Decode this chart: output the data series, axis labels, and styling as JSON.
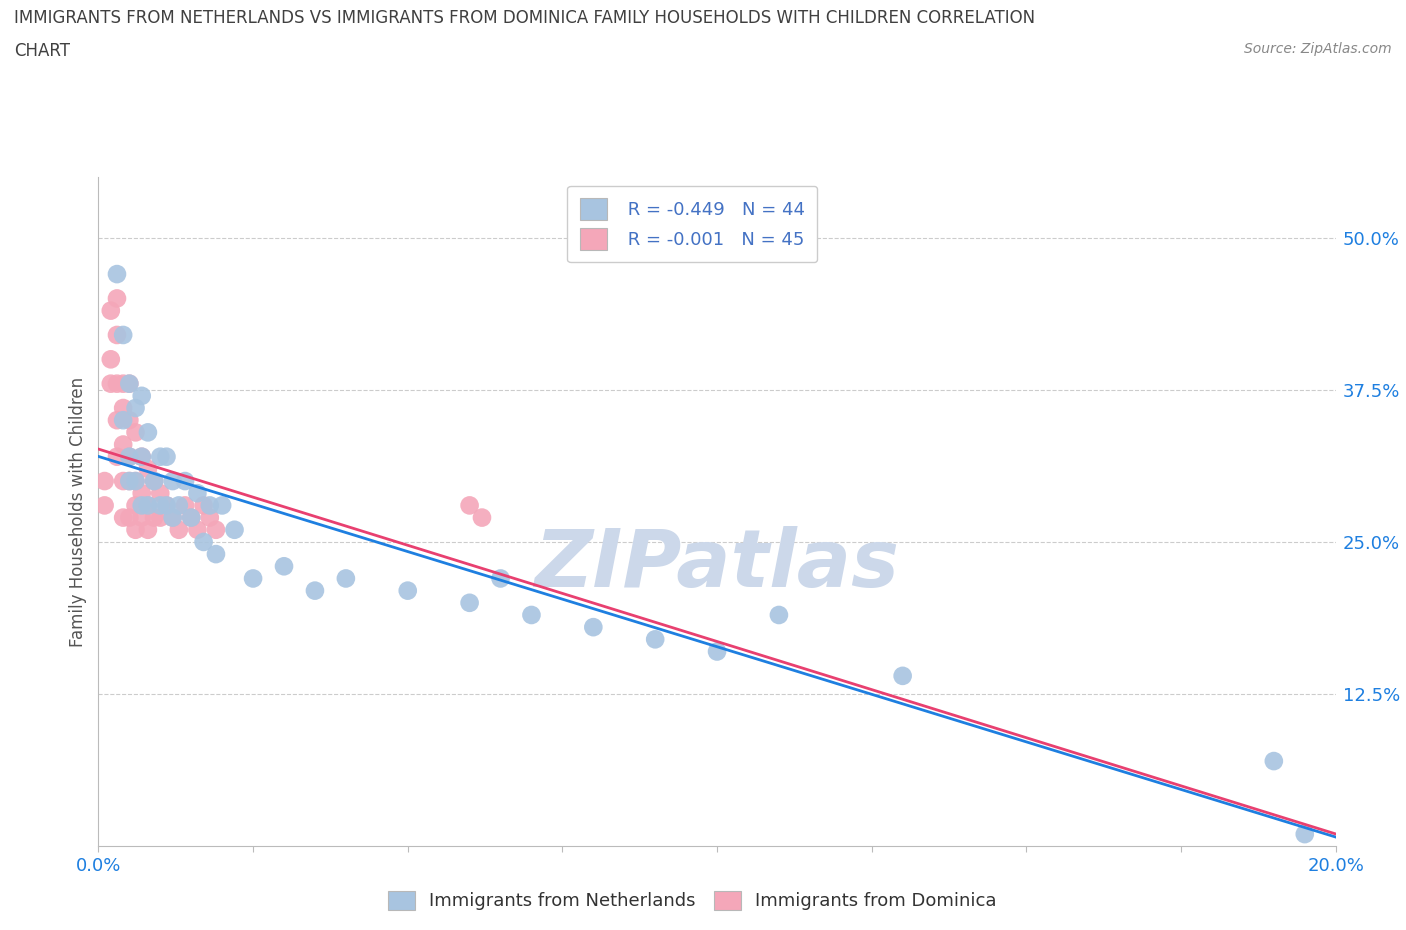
{
  "title_line1": "IMMIGRANTS FROM NETHERLANDS VS IMMIGRANTS FROM DOMINICA FAMILY HOUSEHOLDS WITH CHILDREN CORRELATION",
  "title_line2": "CHART",
  "source": "Source: ZipAtlas.com",
  "ylabel": "Family Households with Children",
  "xlabel_netherlands": "Immigrants from Netherlands",
  "xlabel_dominica": "Immigrants from Dominica",
  "legend_r_netherlands": "R = -0.449",
  "legend_n_netherlands": "N = 44",
  "legend_r_dominica": "R = -0.001",
  "legend_n_dominica": "N = 45",
  "xlim": [
    0.0,
    0.2
  ],
  "ylim": [
    0.0,
    0.55
  ],
  "yticks": [
    0.0,
    0.125,
    0.25,
    0.375,
    0.5
  ],
  "ytick_labels": [
    "",
    "12.5%",
    "25.0%",
    "37.5%",
    "50.0%"
  ],
  "xticks": [
    0.0,
    0.025,
    0.05,
    0.075,
    0.1,
    0.125,
    0.15,
    0.175,
    0.2
  ],
  "xtick_labels": [
    "0.0%",
    "",
    "",
    "",
    "",
    "",
    "",
    "",
    "20.0%"
  ],
  "color_netherlands": "#a8c4e0",
  "color_dominica": "#f4a7b9",
  "line_color_netherlands": "#1e7fe0",
  "line_color_dominica": "#e84070",
  "legend_text_color": "#4472c4",
  "title_color": "#404040",
  "watermark": "ZIPatlas",
  "watermark_color": "#ccd8ea",
  "netherlands_x": [
    0.003,
    0.004,
    0.004,
    0.005,
    0.005,
    0.005,
    0.006,
    0.006,
    0.007,
    0.007,
    0.007,
    0.008,
    0.008,
    0.009,
    0.01,
    0.01,
    0.011,
    0.011,
    0.012,
    0.012,
    0.013,
    0.014,
    0.015,
    0.016,
    0.017,
    0.018,
    0.019,
    0.02,
    0.022,
    0.025,
    0.03,
    0.035,
    0.04,
    0.05,
    0.06,
    0.065,
    0.07,
    0.08,
    0.09,
    0.1,
    0.11,
    0.13,
    0.19,
    0.195
  ],
  "netherlands_y": [
    0.47,
    0.42,
    0.35,
    0.38,
    0.32,
    0.3,
    0.36,
    0.3,
    0.37,
    0.32,
    0.28,
    0.34,
    0.28,
    0.3,
    0.32,
    0.28,
    0.32,
    0.28,
    0.3,
    0.27,
    0.28,
    0.3,
    0.27,
    0.29,
    0.25,
    0.28,
    0.24,
    0.28,
    0.26,
    0.22,
    0.23,
    0.21,
    0.22,
    0.21,
    0.2,
    0.22,
    0.19,
    0.18,
    0.17,
    0.16,
    0.19,
    0.14,
    0.07,
    0.01
  ],
  "dominica_x": [
    0.001,
    0.001,
    0.002,
    0.002,
    0.002,
    0.003,
    0.003,
    0.003,
    0.003,
    0.003,
    0.004,
    0.004,
    0.004,
    0.004,
    0.004,
    0.005,
    0.005,
    0.005,
    0.005,
    0.005,
    0.006,
    0.006,
    0.006,
    0.006,
    0.007,
    0.007,
    0.007,
    0.008,
    0.008,
    0.008,
    0.009,
    0.009,
    0.01,
    0.01,
    0.011,
    0.012,
    0.013,
    0.014,
    0.015,
    0.016,
    0.017,
    0.018,
    0.019,
    0.06,
    0.062
  ],
  "dominica_y": [
    0.28,
    0.3,
    0.4,
    0.44,
    0.38,
    0.45,
    0.42,
    0.38,
    0.35,
    0.32,
    0.38,
    0.36,
    0.33,
    0.3,
    0.27,
    0.38,
    0.35,
    0.32,
    0.3,
    0.27,
    0.34,
    0.3,
    0.28,
    0.26,
    0.32,
    0.29,
    0.27,
    0.31,
    0.28,
    0.26,
    0.3,
    0.27,
    0.29,
    0.27,
    0.28,
    0.27,
    0.26,
    0.28,
    0.27,
    0.26,
    0.28,
    0.27,
    0.26,
    0.28,
    0.27
  ]
}
